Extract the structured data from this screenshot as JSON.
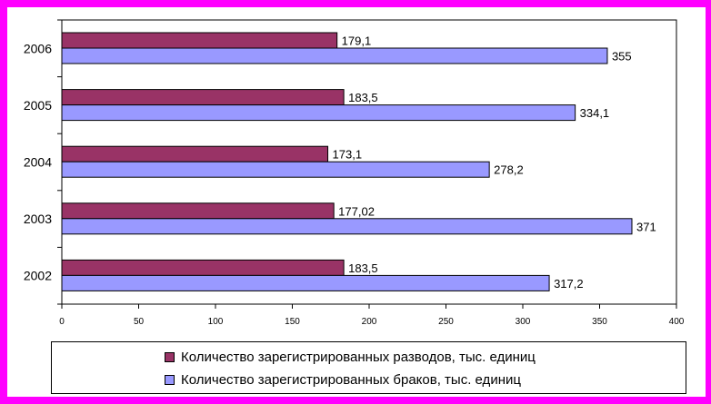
{
  "chart_data": {
    "type": "bar",
    "orientation": "horizontal",
    "categories": [
      "2006",
      "2005",
      "2004",
      "2003",
      "2002"
    ],
    "series": [
      {
        "name": "Количество зарегистрированных разводов, тыс. единиц",
        "color": "#993366",
        "values": [
          179.1,
          183.5,
          173.1,
          177.02,
          183.5
        ],
        "labels": [
          "179,1",
          "183,5",
          "173,1",
          "177,02",
          "183,5"
        ]
      },
      {
        "name": "Количество зарегистрированных браков, тыс. единиц",
        "color": "#9999ff",
        "values": [
          355,
          334.1,
          278.2,
          371,
          317.2
        ],
        "labels": [
          "355",
          "334,1",
          "278,2",
          "371",
          "317,2"
        ]
      }
    ],
    "xlim": [
      0,
      400
    ],
    "xticks": [
      0,
      50,
      100,
      150,
      200,
      250,
      300,
      350,
      400
    ],
    "grid": false,
    "legend_position": "bottom",
    "title": "",
    "xlabel": "",
    "ylabel": ""
  },
  "colors": {
    "frame_border": "#ff00ff",
    "background": "#ffffff"
  }
}
